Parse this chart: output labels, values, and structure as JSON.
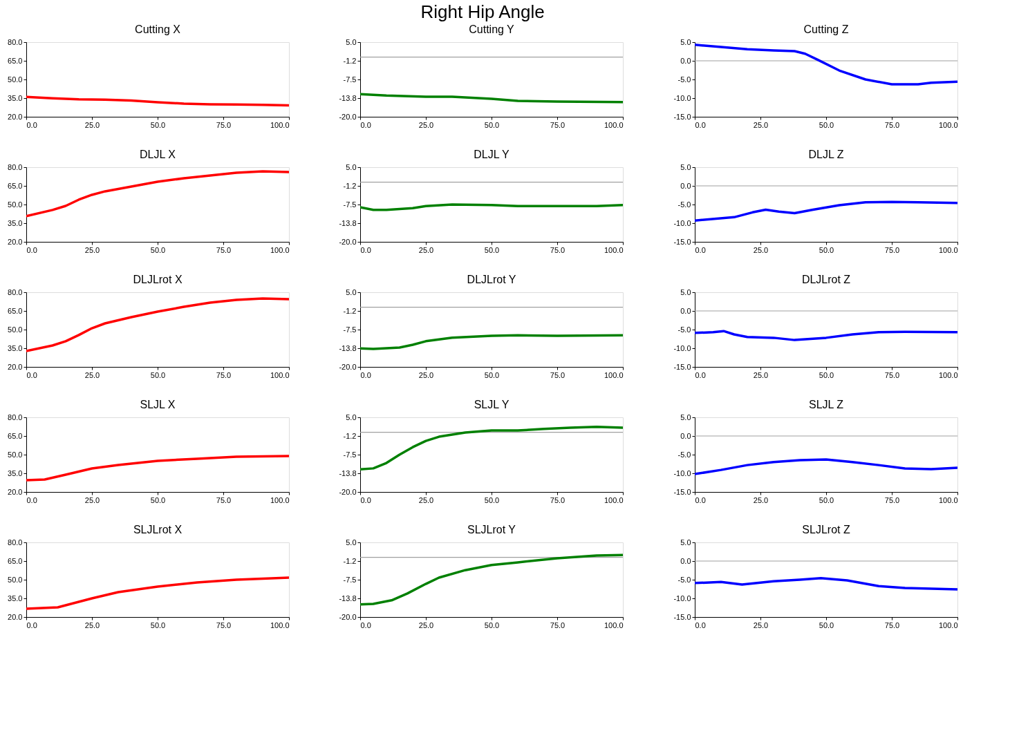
{
  "chart_data": [
    {
      "type": "line",
      "title": "Cutting X",
      "x": [
        0,
        10,
        20,
        30,
        40,
        50,
        60,
        70,
        80,
        90,
        100
      ],
      "series": [
        {
          "color": "#ff0000",
          "values": [
            36,
            34.8,
            34,
            33.7,
            33,
            31.7,
            30.6,
            30,
            29.8,
            29.6,
            29.2
          ]
        }
      ],
      "xlim": [
        0,
        100
      ],
      "ylim": [
        20,
        80
      ],
      "xticks": [
        {
          "value": 0,
          "label": "0.0"
        },
        {
          "value": 25,
          "label": "25.0"
        },
        {
          "value": 50,
          "label": "50.0"
        },
        {
          "value": 75,
          "label": "75.0"
        },
        {
          "value": 100,
          "label": "100.0"
        }
      ],
      "yticks": [
        {
          "value": 20,
          "label": "20.0"
        },
        {
          "value": 35,
          "label": "35.0"
        },
        {
          "value": 50,
          "label": "50.0"
        },
        {
          "value": 65,
          "label": "65.0"
        },
        {
          "value": 80,
          "label": "80.0"
        }
      ],
      "grid": false
    },
    {
      "type": "line",
      "title": "Cutting Y",
      "x": [
        0,
        10,
        25,
        35,
        50,
        60,
        75,
        100
      ],
      "series": [
        {
          "color": "#008000",
          "values": [
            -12.4,
            -12.9,
            -13.3,
            -13.3,
            -14,
            -14.7,
            -14.9,
            -15.1
          ]
        }
      ],
      "xlim": [
        0,
        100
      ],
      "ylim": [
        -20,
        5
      ],
      "xticks": [
        {
          "value": 0,
          "label": "0.0"
        },
        {
          "value": 25,
          "label": "25.0"
        },
        {
          "value": 50,
          "label": "50.0"
        },
        {
          "value": 75,
          "label": "75.0"
        },
        {
          "value": 100,
          "label": "100.0"
        }
      ],
      "yticks": [
        {
          "value": -20,
          "label": "-20.0"
        },
        {
          "value": -13.75,
          "label": "-13.8"
        },
        {
          "value": -7.5,
          "label": "-7.5"
        },
        {
          "value": -1.25,
          "label": "-1.2"
        },
        {
          "value": 5,
          "label": "5.0"
        }
      ],
      "ref_lines": [
        {
          "axis": "y",
          "value": 0,
          "color": "#a0a0a0"
        }
      ],
      "grid": false
    },
    {
      "type": "line",
      "title": "Cutting Z",
      "x": [
        0,
        10,
        20,
        30,
        38,
        42,
        47,
        55,
        65,
        75,
        85,
        90,
        100
      ],
      "series": [
        {
          "color": "#0000ff",
          "values": [
            4.3,
            3.7,
            3.1,
            2.8,
            2.6,
            1.9,
            0.2,
            -2.6,
            -5,
            -6.3,
            -6.3,
            -5.9,
            -5.6
          ]
        }
      ],
      "xlim": [
        0,
        100
      ],
      "ylim": [
        -15,
        5
      ],
      "xticks": [
        {
          "value": 0,
          "label": "0.0"
        },
        {
          "value": 25,
          "label": "25.0"
        },
        {
          "value": 50,
          "label": "50.0"
        },
        {
          "value": 75,
          "label": "75.0"
        },
        {
          "value": 100,
          "label": "100.0"
        }
      ],
      "yticks": [
        {
          "value": -15,
          "label": "-15.0"
        },
        {
          "value": -10,
          "label": "-10.0"
        },
        {
          "value": -5,
          "label": "-5.0"
        },
        {
          "value": 0,
          "label": "0.0"
        },
        {
          "value": 5,
          "label": "5.0"
        }
      ],
      "ref_lines": [
        {
          "axis": "y",
          "value": 0,
          "color": "#a0a0a0"
        }
      ],
      "grid": false
    },
    {
      "type": "line",
      "title": "DLJL X",
      "x": [
        0,
        10,
        15,
        20,
        25,
        30,
        40,
        50,
        60,
        70,
        80,
        90,
        100
      ],
      "series": [
        {
          "color": "#ff0000",
          "values": [
            40.6,
            45.6,
            48.9,
            53.9,
            57.8,
            60.6,
            64.4,
            68.3,
            71.1,
            73.3,
            75.6,
            76.7,
            76.1
          ]
        }
      ],
      "xlim": [
        0,
        100
      ],
      "ylim": [
        20,
        80
      ],
      "xticks": [
        {
          "value": 0,
          "label": "0.0"
        },
        {
          "value": 25,
          "label": "25.0"
        },
        {
          "value": 50,
          "label": "50.0"
        },
        {
          "value": 75,
          "label": "75.0"
        },
        {
          "value": 100,
          "label": "100.0"
        }
      ],
      "yticks": [
        {
          "value": 20,
          "label": "20.0"
        },
        {
          "value": 35,
          "label": "35.0"
        },
        {
          "value": 50,
          "label": "50.0"
        },
        {
          "value": 65,
          "label": "65.0"
        },
        {
          "value": 80,
          "label": "80.0"
        }
      ],
      "grid": false
    },
    {
      "type": "line",
      "title": "DLJL Y",
      "x": [
        0,
        5,
        10,
        20,
        25,
        35,
        50,
        60,
        75,
        90,
        100
      ],
      "series": [
        {
          "color": "#008000",
          "values": [
            -8.4,
            -9.3,
            -9.3,
            -8.7,
            -8,
            -7.5,
            -7.7,
            -8,
            -8,
            -8,
            -7.7
          ]
        }
      ],
      "xlim": [
        0,
        100
      ],
      "ylim": [
        -20,
        5
      ],
      "xticks": [
        {
          "value": 0,
          "label": "0.0"
        },
        {
          "value": 25,
          "label": "25.0"
        },
        {
          "value": 50,
          "label": "50.0"
        },
        {
          "value": 75,
          "label": "75.0"
        },
        {
          "value": 100,
          "label": "100.0"
        }
      ],
      "yticks": [
        {
          "value": -20,
          "label": "-20.0"
        },
        {
          "value": -13.75,
          "label": "-13.8"
        },
        {
          "value": -7.5,
          "label": "-7.5"
        },
        {
          "value": -1.25,
          "label": "-1.2"
        },
        {
          "value": 5,
          "label": "5.0"
        }
      ],
      "ref_lines": [
        {
          "axis": "y",
          "value": 0,
          "color": "#a0a0a0"
        }
      ],
      "grid": false
    },
    {
      "type": "line",
      "title": "DLJL Z",
      "x": [
        0,
        15,
        22,
        27,
        32,
        38,
        45,
        55,
        65,
        75,
        85,
        100
      ],
      "series": [
        {
          "color": "#0000ff",
          "values": [
            -9.3,
            -8.4,
            -7.1,
            -6.4,
            -6.9,
            -7.3,
            -6.4,
            -5.2,
            -4.4,
            -4.3,
            -4.4,
            -4.6
          ]
        }
      ],
      "xlim": [
        0,
        100
      ],
      "ylim": [
        -15,
        5
      ],
      "xticks": [
        {
          "value": 0,
          "label": "0.0"
        },
        {
          "value": 25,
          "label": "25.0"
        },
        {
          "value": 50,
          "label": "50.0"
        },
        {
          "value": 75,
          "label": "75.0"
        },
        {
          "value": 100,
          "label": "100.0"
        }
      ],
      "yticks": [
        {
          "value": -15,
          "label": "-15.0"
        },
        {
          "value": -10,
          "label": "-10.0"
        },
        {
          "value": -5,
          "label": "-5.0"
        },
        {
          "value": 0,
          "label": "0.0"
        },
        {
          "value": 5,
          "label": "5.0"
        }
      ],
      "ref_lines": [
        {
          "axis": "y",
          "value": 0,
          "color": "#a0a0a0"
        }
      ],
      "grid": false
    },
    {
      "type": "line",
      "title": "DLJLrot X",
      "x": [
        0,
        10,
        15,
        20,
        25,
        30,
        40,
        50,
        60,
        70,
        80,
        90,
        100
      ],
      "series": [
        {
          "color": "#ff0000",
          "values": [
            32.8,
            37.2,
            40.6,
            45.6,
            51.1,
            55,
            60,
            64.4,
            68.3,
            71.7,
            73.9,
            75,
            74.4
          ]
        }
      ],
      "xlim": [
        0,
        100
      ],
      "ylim": [
        20,
        80
      ],
      "xticks": [
        {
          "value": 0,
          "label": "0.0"
        },
        {
          "value": 25,
          "label": "25.0"
        },
        {
          "value": 50,
          "label": "50.0"
        },
        {
          "value": 75,
          "label": "75.0"
        },
        {
          "value": 100,
          "label": "100.0"
        }
      ],
      "yticks": [
        {
          "value": 20,
          "label": "20.0"
        },
        {
          "value": 35,
          "label": "35.0"
        },
        {
          "value": 50,
          "label": "50.0"
        },
        {
          "value": 65,
          "label": "65.0"
        },
        {
          "value": 80,
          "label": "80.0"
        }
      ],
      "grid": false
    },
    {
      "type": "line",
      "title": "DLJLrot Y",
      "x": [
        0,
        5,
        15,
        20,
        25,
        35,
        50,
        60,
        75,
        100
      ],
      "series": [
        {
          "color": "#008000",
          "values": [
            -13.8,
            -14,
            -13.5,
            -12.6,
            -11.4,
            -10.2,
            -9.6,
            -9.4,
            -9.6,
            -9.4
          ]
        }
      ],
      "xlim": [
        0,
        100
      ],
      "ylim": [
        -20,
        5
      ],
      "xticks": [
        {
          "value": 0,
          "label": "0.0"
        },
        {
          "value": 25,
          "label": "25.0"
        },
        {
          "value": 50,
          "label": "50.0"
        },
        {
          "value": 75,
          "label": "75.0"
        },
        {
          "value": 100,
          "label": "100.0"
        }
      ],
      "yticks": [
        {
          "value": -20,
          "label": "-20.0"
        },
        {
          "value": -13.75,
          "label": "-13.8"
        },
        {
          "value": -7.5,
          "label": "-7.5"
        },
        {
          "value": -1.25,
          "label": "-1.2"
        },
        {
          "value": 5,
          "label": "5.0"
        }
      ],
      "ref_lines": [
        {
          "axis": "y",
          "value": 0,
          "color": "#a0a0a0"
        }
      ],
      "grid": false
    },
    {
      "type": "line",
      "title": "DLJLrot  Z",
      "x": [
        0,
        7,
        11,
        15,
        20,
        30,
        38,
        50,
        60,
        70,
        80,
        100
      ],
      "series": [
        {
          "color": "#0000ff",
          "values": [
            -5.9,
            -5.7,
            -5.4,
            -6.3,
            -7,
            -7.2,
            -7.8,
            -7.2,
            -6.3,
            -5.7,
            -5.6,
            -5.7
          ]
        }
      ],
      "xlim": [
        0,
        100
      ],
      "ylim": [
        -15,
        5
      ],
      "xticks": [
        {
          "value": 0,
          "label": "0.0"
        },
        {
          "value": 25,
          "label": "25.0"
        },
        {
          "value": 50,
          "label": "50.0"
        },
        {
          "value": 75,
          "label": "75.0"
        },
        {
          "value": 100,
          "label": "100.0"
        }
      ],
      "yticks": [
        {
          "value": -15,
          "label": "-15.0"
        },
        {
          "value": -10,
          "label": "-10.0"
        },
        {
          "value": -5,
          "label": "-5.0"
        },
        {
          "value": 0,
          "label": "0.0"
        },
        {
          "value": 5,
          "label": "5.0"
        }
      ],
      "ref_lines": [
        {
          "axis": "y",
          "value": 0,
          "color": "#a0a0a0"
        }
      ],
      "grid": false
    },
    {
      "type": "line",
      "title": "SLJL X",
      "x": [
        0,
        7,
        15,
        25,
        35,
        50,
        65,
        80,
        100
      ],
      "series": [
        {
          "color": "#ff0000",
          "values": [
            29.4,
            30,
            33.9,
            38.9,
            41.7,
            45,
            46.7,
            48.3,
            48.9
          ]
        }
      ],
      "xlim": [
        0,
        100
      ],
      "ylim": [
        20,
        80
      ],
      "xticks": [
        {
          "value": 0,
          "label": "0.0"
        },
        {
          "value": 25,
          "label": "25.0"
        },
        {
          "value": 50,
          "label": "50.0"
        },
        {
          "value": 75,
          "label": "75.0"
        },
        {
          "value": 100,
          "label": "100.0"
        }
      ],
      "yticks": [
        {
          "value": 20,
          "label": "20.0"
        },
        {
          "value": 35,
          "label": "35.0"
        },
        {
          "value": 50,
          "label": "50.0"
        },
        {
          "value": 65,
          "label": "65.0"
        },
        {
          "value": 80,
          "label": "80.0"
        }
      ],
      "grid": false
    },
    {
      "type": "line",
      "title": "SLJL Y",
      "x": [
        0,
        5,
        10,
        15,
        20,
        25,
        30,
        40,
        50,
        60,
        70,
        80,
        90,
        100
      ],
      "series": [
        {
          "color": "#008000",
          "values": [
            -12.4,
            -12.1,
            -10.3,
            -7.5,
            -5,
            -2.9,
            -1.5,
            -0.1,
            0.6,
            0.6,
            1.1,
            1.5,
            1.8,
            1.5
          ]
        }
      ],
      "xlim": [
        0,
        100
      ],
      "ylim": [
        -20,
        5
      ],
      "xticks": [
        {
          "value": 0,
          "label": "0.0"
        },
        {
          "value": 25,
          "label": "25.0"
        },
        {
          "value": 50,
          "label": "50.0"
        },
        {
          "value": 75,
          "label": "75.0"
        },
        {
          "value": 100,
          "label": "100.0"
        }
      ],
      "yticks": [
        {
          "value": -20,
          "label": "-20.0"
        },
        {
          "value": -13.75,
          "label": "-13.8"
        },
        {
          "value": -7.5,
          "label": "-7.5"
        },
        {
          "value": -1.25,
          "label": "-1.2"
        },
        {
          "value": 5,
          "label": "5.0"
        }
      ],
      "ref_lines": [
        {
          "axis": "y",
          "value": 0,
          "color": "#a0a0a0"
        }
      ],
      "grid": false
    },
    {
      "type": "line",
      "title": "SLJL Z",
      "x": [
        0,
        10,
        20,
        30,
        40,
        50,
        60,
        70,
        80,
        90,
        100
      ],
      "series": [
        {
          "color": "#0000ff",
          "values": [
            -10.2,
            -9.1,
            -7.8,
            -7,
            -6.5,
            -6.3,
            -7,
            -7.8,
            -8.7,
            -8.9,
            -8.5
          ]
        }
      ],
      "xlim": [
        0,
        100
      ],
      "ylim": [
        -15,
        5
      ],
      "xticks": [
        {
          "value": 0,
          "label": "0.0"
        },
        {
          "value": 25,
          "label": "25.0"
        },
        {
          "value": 50,
          "label": "50.0"
        },
        {
          "value": 75,
          "label": "75.0"
        },
        {
          "value": 100,
          "label": "100.0"
        }
      ],
      "yticks": [
        {
          "value": -15,
          "label": "-15.0"
        },
        {
          "value": -10,
          "label": "-10.0"
        },
        {
          "value": -5,
          "label": "-5.0"
        },
        {
          "value": 0,
          "label": "0.0"
        },
        {
          "value": 5,
          "label": "5.0"
        }
      ],
      "ref_lines": [
        {
          "axis": "y",
          "value": 0,
          "color": "#a0a0a0"
        }
      ],
      "grid": false
    },
    {
      "type": "line",
      "title": "SLJLrot X",
      "x": [
        0,
        12,
        20,
        25,
        35,
        50,
        65,
        80,
        100
      ],
      "series": [
        {
          "color": "#ff0000",
          "values": [
            26.7,
            27.8,
            32.2,
            35,
            40,
            44.4,
            47.8,
            50,
            51.7
          ]
        }
      ],
      "xlim": [
        0,
        100
      ],
      "ylim": [
        20,
        80
      ],
      "xticks": [
        {
          "value": 0,
          "label": "0.0"
        },
        {
          "value": 25,
          "label": "25.0"
        },
        {
          "value": 50,
          "label": "50.0"
        },
        {
          "value": 75,
          "label": "75.0"
        },
        {
          "value": 100,
          "label": "100.0"
        }
      ],
      "yticks": [
        {
          "value": 20,
          "label": "20.0"
        },
        {
          "value": 35,
          "label": "35.0"
        },
        {
          "value": 50,
          "label": "50.0"
        },
        {
          "value": 65,
          "label": "65.0"
        },
        {
          "value": 80,
          "label": "80.0"
        }
      ],
      "grid": false
    },
    {
      "type": "line",
      "title": "SLJLrot Y",
      "x": [
        0,
        5,
        12,
        18,
        25,
        30,
        40,
        50,
        60,
        75,
        90,
        100
      ],
      "series": [
        {
          "color": "#008000",
          "values": [
            -15.8,
            -15.6,
            -14.4,
            -12.1,
            -8.9,
            -6.8,
            -4.3,
            -2.6,
            -1.7,
            -0.3,
            0.6,
            0.8
          ]
        }
      ],
      "xlim": [
        0,
        100
      ],
      "ylim": [
        -20,
        5
      ],
      "xticks": [
        {
          "value": 0,
          "label": "0.0"
        },
        {
          "value": 25,
          "label": "25.0"
        },
        {
          "value": 50,
          "label": "50.0"
        },
        {
          "value": 75,
          "label": "75.0"
        },
        {
          "value": 100,
          "label": "100.0"
        }
      ],
      "yticks": [
        {
          "value": -20,
          "label": "-20.0"
        },
        {
          "value": -13.75,
          "label": "-13.8"
        },
        {
          "value": -7.5,
          "label": "-7.5"
        },
        {
          "value": -1.25,
          "label": "-1.2"
        },
        {
          "value": 5,
          "label": "5.0"
        }
      ],
      "ref_lines": [
        {
          "axis": "y",
          "value": 0,
          "color": "#a0a0a0"
        }
      ],
      "grid": false
    },
    {
      "type": "line",
      "title": "SLJLrot Z",
      "x": [
        0,
        10,
        18,
        30,
        40,
        48,
        58,
        70,
        80,
        100
      ],
      "series": [
        {
          "color": "#0000ff",
          "values": [
            -5.9,
            -5.6,
            -6.3,
            -5.4,
            -5,
            -4.6,
            -5.2,
            -6.7,
            -7.2,
            -7.6
          ]
        }
      ],
      "xlim": [
        0,
        100
      ],
      "ylim": [
        -15,
        5
      ],
      "xticks": [
        {
          "value": 0,
          "label": "0.0"
        },
        {
          "value": 25,
          "label": "25.0"
        },
        {
          "value": 50,
          "label": "50.0"
        },
        {
          "value": 75,
          "label": "75.0"
        },
        {
          "value": 100,
          "label": "100.0"
        }
      ],
      "yticks": [
        {
          "value": -15,
          "label": "-15.0"
        },
        {
          "value": -10,
          "label": "-10.0"
        },
        {
          "value": -5,
          "label": "-5.0"
        },
        {
          "value": 0,
          "label": "0.0"
        },
        {
          "value": 5,
          "label": "5.0"
        }
      ],
      "ref_lines": [
        {
          "axis": "y",
          "value": 0,
          "color": "#a0a0a0"
        }
      ],
      "grid": false,
      "annotations": [
        "Right Hip Angle"
      ]
    }
  ]
}
